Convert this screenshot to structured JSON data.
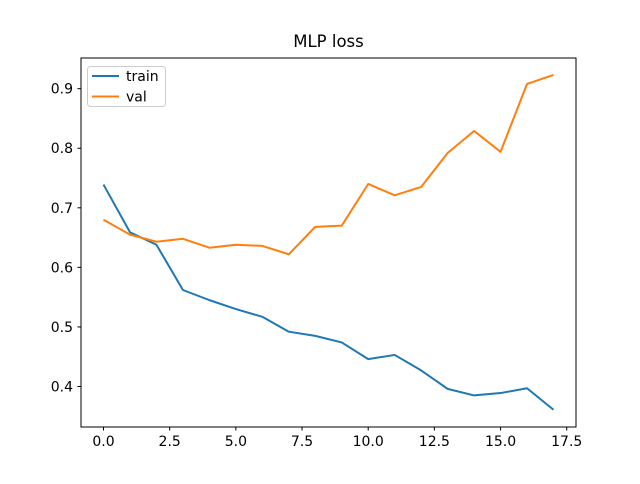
{
  "figure": {
    "title": "MLP loss"
  },
  "chart_data": {
    "type": "line",
    "title": "MLP loss",
    "xlabel": "",
    "ylabel": "",
    "x": [
      0,
      1,
      2,
      3,
      4,
      5,
      6,
      7,
      8,
      9,
      10,
      11,
      12,
      13,
      14,
      15,
      16,
      17
    ],
    "series": [
      {
        "name": "train",
        "color": "#1f77b4",
        "values": [
          0.739,
          0.659,
          0.638,
          0.562,
          0.545,
          0.53,
          0.517,
          0.492,
          0.485,
          0.474,
          0.446,
          0.453,
          0.427,
          0.396,
          0.385,
          0.389,
          0.397,
          0.361
        ]
      },
      {
        "name": "val",
        "color": "#ff7f0e",
        "values": [
          0.68,
          0.655,
          0.643,
          0.648,
          0.633,
          0.638,
          0.636,
          0.622,
          0.668,
          0.67,
          0.74,
          0.721,
          0.735,
          0.792,
          0.829,
          0.794,
          0.908,
          0.923
        ]
      }
    ],
    "xlim": [
      -0.85,
      17.85
    ],
    "ylim": [
      0.332,
      0.9515
    ],
    "xticks": [
      0,
      2.5,
      5,
      7.5,
      10,
      12.5,
      15,
      17.5
    ],
    "xticklabels": [
      "0.0",
      "2.5",
      "5.0",
      "7.5",
      "10.0",
      "12.5",
      "15.0",
      "17.5"
    ],
    "yticks": [
      0.4,
      0.5,
      0.6,
      0.7,
      0.8,
      0.9
    ],
    "yticklabels": [
      "0.4",
      "0.5",
      "0.6",
      "0.7",
      "0.8",
      "0.9"
    ],
    "grid": false,
    "line_width": 2,
    "legend": {
      "position": "upper-left",
      "entries": [
        "train",
        "val"
      ]
    },
    "colors": {
      "axis": "#000000",
      "legend_border": "#cccccc",
      "background": "#ffffff"
    }
  }
}
